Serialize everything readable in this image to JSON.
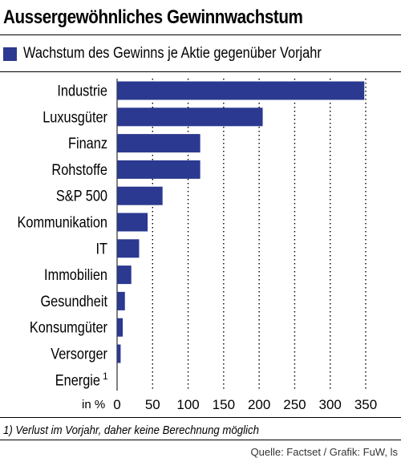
{
  "title": "Aussergewöhnliches Gewinnwachstum",
  "legend": {
    "label": "Wachstum des Gewinns je Aktie gegenüber Vorjahr",
    "color": "#2b3990"
  },
  "unit_label": "in %",
  "footnote": "1) Verlust im Vorjahr, daher keine Berechnung möglich",
  "source": "Quelle: Factset / Grafik: FuW, ls",
  "chart_data": {
    "type": "bar",
    "orientation": "horizontal",
    "title": "Aussergewöhnliches Gewinnwachstum",
    "categories": [
      "Industrie",
      "Luxusgüter",
      "Finanz",
      "Rohstoffe",
      "S&P 500",
      "Kommunikation",
      "IT",
      "Immobilien",
      "Gesundheit",
      "Konsumgüter",
      "Versorger",
      "Energie"
    ],
    "category_footnote": {
      "index": 11,
      "mark": "1"
    },
    "values": [
      348,
      205,
      117,
      117,
      64,
      43,
      31,
      20,
      11,
      8,
      5,
      null
    ],
    "xlim": [
      0,
      350
    ],
    "xticks": [
      0,
      50,
      100,
      150,
      200,
      250,
      300,
      350
    ],
    "xlabel": "in %",
    "grid": "vertical dotted",
    "series": [
      {
        "name": "Wachstum des Gewinns je Aktie gegenüber Vorjahr",
        "values": [
          348,
          205,
          117,
          117,
          64,
          43,
          31,
          20,
          11,
          8,
          5,
          null
        ]
      }
    ],
    "color": "#2b3990"
  }
}
